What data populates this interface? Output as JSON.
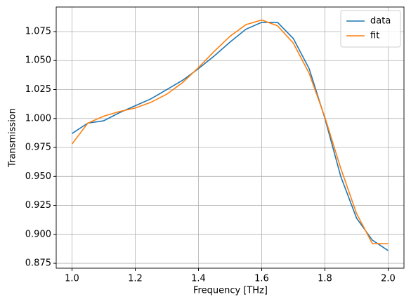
{
  "chart_data": {
    "type": "line",
    "x_label": "Frequency [THz]",
    "y_label": "Transmission",
    "x": [
      1.0,
      1.05,
      1.1,
      1.15,
      1.2,
      1.25,
      1.3,
      1.35,
      1.4,
      1.45,
      1.5,
      1.55,
      1.6,
      1.65,
      1.7,
      1.75,
      1.8,
      1.85,
      1.9,
      1.95,
      2.0
    ],
    "series": [
      {
        "name": "data",
        "color": "#1f77b4",
        "values": [
          0.987,
          0.996,
          0.998,
          1.005,
          1.011,
          1.017,
          1.025,
          1.033,
          1.043,
          1.054,
          1.066,
          1.077,
          1.083,
          1.083,
          1.069,
          1.043,
          1.0,
          0.95,
          0.914,
          0.895,
          0.886
        ]
      },
      {
        "name": "fit",
        "color": "#ff7f0e",
        "values": [
          0.978,
          0.996,
          1.002,
          1.006,
          1.009,
          1.014,
          1.021,
          1.031,
          1.044,
          1.058,
          1.071,
          1.081,
          1.085,
          1.08,
          1.065,
          1.039,
          1.001,
          0.957,
          0.918,
          0.892,
          0.892
        ]
      }
    ],
    "xlim": [
      0.95,
      2.05
    ],
    "xticks": [
      {
        "value": 1,
        "label": "1.0"
      },
      1.2,
      1.4,
      1.6,
      1.8,
      {
        "value": 2,
        "label": "2.0"
      }
    ],
    "ylim": [
      0.8708,
      1.0962
    ],
    "yticks": [
      0.875,
      {
        "value": 0.9,
        "label": "0.900"
      },
      0.925,
      {
        "value": 0.95,
        "label": "0.950"
      },
      0.975,
      {
        "value": 1,
        "label": "1.000"
      },
      1.025,
      {
        "value": 1.05,
        "label": "1.050"
      },
      1.075
    ],
    "grid": true,
    "legend": "upper right"
  }
}
